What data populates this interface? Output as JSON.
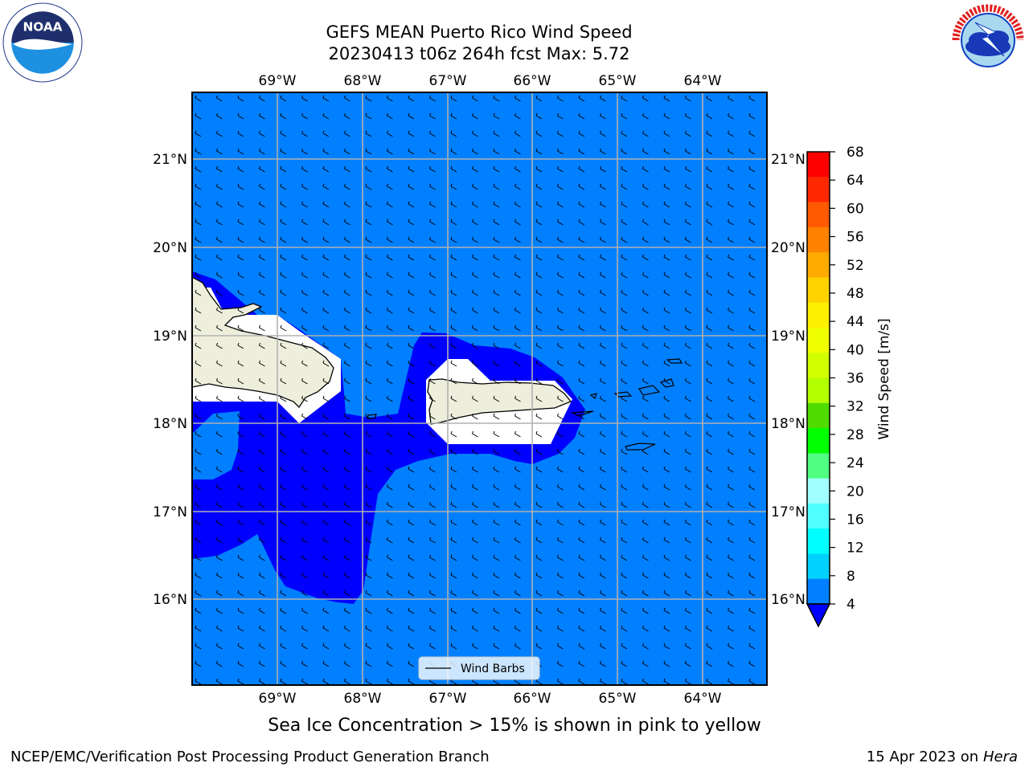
{
  "header": {
    "title_line1": "GEFS MEAN Puerto Rico Wind Speed",
    "title_line2": "20230413 t06z 264h fcst   Max: 5.72"
  },
  "map": {
    "lon_ticks": [
      "69°W",
      "68°W",
      "67°W",
      "66°W",
      "65°W",
      "64°W"
    ],
    "lat_ticks": [
      "21°N",
      "20°N",
      "19°N",
      "18°N",
      "17°N",
      "16°N"
    ],
    "ocean_color": "#0080ff",
    "low_wind_color": "#0000ff",
    "land_color": "#eeeedd",
    "legend_label": "Wind Barbs"
  },
  "colorbar": {
    "label": "Wind Speed [m/s]",
    "ticks": [
      "68",
      "64",
      "60",
      "56",
      "52",
      "48",
      "44",
      "40",
      "36",
      "32",
      "28",
      "24",
      "20",
      "16",
      "12",
      "8",
      "4"
    ],
    "colors_top_to_bottom": [
      "#ff0000",
      "#ff2800",
      "#ff5a00",
      "#ff8200",
      "#ffaa00",
      "#ffd200",
      "#fff000",
      "#f0ff00",
      "#d2ff00",
      "#b4ff00",
      "#50dc00",
      "#00ff00",
      "#50ff80",
      "#a0ffff",
      "#50ffff",
      "#00ffff",
      "#00d2ff",
      "#0080ff"
    ],
    "under_color": "#0000ff"
  },
  "subtitle": "Sea Ice Concentration > 15% is shown in pink to yellow",
  "footer": {
    "left": "NCEP/EMC/Verification Post Processing Product Generation Branch",
    "right_date": "15 Apr 2023 on ",
    "right_host": "Hera"
  }
}
